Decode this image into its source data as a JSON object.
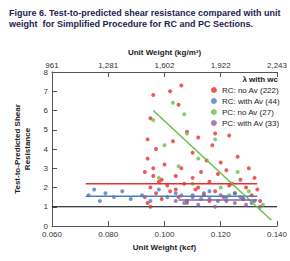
{
  "chart_data": {
    "type": "scatter",
    "title": "Figure 6. Test-to-predicted shear resistance compared with unit weight  for Simplified Procedure for RC and PC Sections.",
    "x_label": "Unit Weight (kcf)",
    "x2_label": "Unit Weight (kg/m³)",
    "y_label": "Test-to-Predicted Shear\nResistance",
    "annotation": "λ with wc",
    "xlim": [
      0.06,
      0.14
    ],
    "xticks": [
      {
        "value": 0.06,
        "label": "0.060"
      },
      {
        "value": 0.08,
        "label": "0.080"
      },
      {
        "value": 0.1,
        "label": "0.100"
      },
      {
        "value": 0.12,
        "label": "0.120"
      },
      {
        "value": 0.14,
        "label": "0.140"
      }
    ],
    "x2lim": [
      961,
      2243
    ],
    "x2ticks": [
      961,
      {
        "value": 1281,
        "label": "1,281"
      },
      {
        "value": 1602,
        "label": "1,602"
      },
      {
        "value": 1922,
        "label": "1,922"
      },
      {
        "value": 2243,
        "label": "2,243"
      }
    ],
    "ylim": [
      0,
      8
    ],
    "yticks": [
      0,
      1,
      2,
      3,
      4,
      5,
      6,
      7,
      8
    ],
    "grid": false,
    "legend": "upper right",
    "reference_line": {
      "y": 1,
      "color": "#000000"
    },
    "series": [
      {
        "name": "RC: no Av (222)",
        "color": "#e8312f",
        "marker": "circle",
        "x": [
          0.093,
          0.093,
          0.094,
          0.094,
          0.094,
          0.095,
          0.095,
          0.095,
          0.096,
          0.096,
          0.096,
          0.097,
          0.097,
          0.098,
          0.099,
          0.1,
          0.101,
          0.102,
          0.102,
          0.103,
          0.104,
          0.105,
          0.105,
          0.106,
          0.107,
          0.108,
          0.108,
          0.106,
          0.11,
          0.11,
          0.111,
          0.112,
          0.113,
          0.114,
          0.115,
          0.116,
          0.117,
          0.118,
          0.118,
          0.119,
          0.12,
          0.121,
          0.122,
          0.123,
          0.124,
          0.125,
          0.126,
          0.127,
          0.128,
          0.129,
          0.13,
          0.131,
          0.132,
          0.133,
          0.134,
          0.112,
          0.104,
          0.099,
          0.123,
          0.116
        ],
        "y": [
          1.5,
          2.8,
          1.2,
          3.5,
          4.5,
          2.0,
          5.6,
          1.0,
          2.6,
          3.0,
          6.8,
          1.7,
          4.0,
          2.3,
          1.4,
          3.2,
          2.1,
          7.0,
          1.8,
          4.4,
          2.6,
          1.5,
          6.3,
          3.0,
          2.2,
          4.9,
          1.3,
          7.3,
          2.5,
          3.8,
          1.9,
          4.6,
          2.8,
          1.6,
          3.4,
          2.3,
          4.2,
          4.8,
          1.8,
          2.7,
          3.3,
          1.5,
          2.9,
          4.7,
          2.2,
          1.7,
          3.6,
          2.4,
          1.4,
          2.0,
          3.0,
          1.6,
          2.5,
          1.9,
          1.3,
          2.0,
          1.9,
          2.4,
          2.1,
          1.3
        ],
        "trend_x": [
          0.072,
          0.133
        ],
        "trend_y": [
          2.2,
          2.2
        ]
      },
      {
        "name": "RC: with Av (44)",
        "color": "#4a7ebb",
        "marker": "circle",
        "x": [
          0.073,
          0.075,
          0.077,
          0.079,
          0.082,
          0.085,
          0.088,
          0.092,
          0.095,
          0.098,
          0.101,
          0.104,
          0.107,
          0.11,
          0.113,
          0.116,
          0.119,
          0.122,
          0.125,
          0.128,
          0.131
        ],
        "y": [
          1.6,
          1.9,
          1.3,
          1.7,
          1.5,
          1.8,
          1.4,
          1.6,
          1.3,
          1.9,
          1.5,
          1.7,
          1.2,
          1.6,
          1.4,
          1.8,
          1.3,
          1.5,
          1.7,
          1.4,
          1.2
        ],
        "trend_x": [
          0.072,
          0.133
        ],
        "trend_y": [
          1.55,
          1.55
        ]
      },
      {
        "name": "PC: no Av (27)",
        "color": "#6cbf4a",
        "marker": "circle",
        "x": [
          0.096,
          0.098,
          0.1,
          0.103,
          0.105,
          0.108,
          0.11,
          0.112,
          0.107,
          0.118,
          0.12,
          0.123,
          0.126,
          0.13,
          0.135
        ],
        "y": [
          5.5,
          2.5,
          4.2,
          6.4,
          3.1,
          4.8,
          2.2,
          3.5,
          5.8,
          4.5,
          2.0,
          1.6,
          2.8,
          1.8,
          1.1
        ],
        "trend_x": [
          0.096,
          0.138
        ],
        "trend_y": [
          6.0,
          0.3
        ]
      },
      {
        "name": "PC: with Av (33)",
        "color": "#8e5ea2",
        "marker": "circle",
        "x": [
          0.104,
          0.106,
          0.108,
          0.11,
          0.112,
          0.114,
          0.116,
          0.118,
          0.12,
          0.122,
          0.125,
          0.127,
          0.129,
          0.132,
          0.134
        ],
        "y": [
          1.3,
          1.6,
          1.2,
          1.5,
          1.1,
          1.7,
          1.4,
          1.0,
          1.6,
          1.3,
          1.2,
          1.5,
          1.1,
          1.3,
          1.0
        ],
        "trend_x": [
          0.105,
          0.133
        ],
        "trend_y": [
          1.35,
          1.35
        ]
      }
    ]
  }
}
